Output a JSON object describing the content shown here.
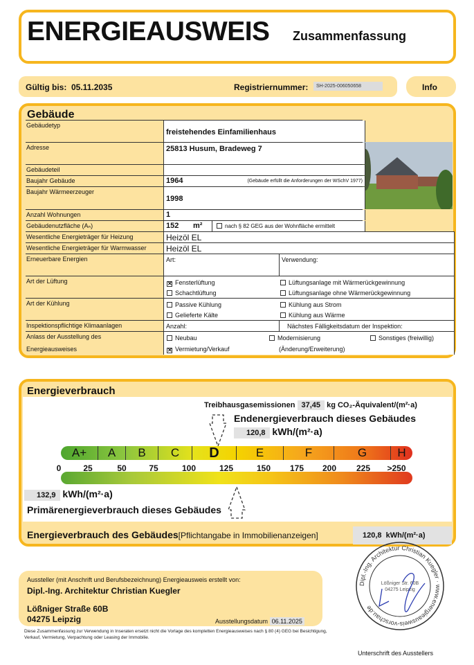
{
  "header": {
    "title": "ENERGIEAUSWEIS",
    "subtitle": "Zusammenfassung"
  },
  "info_bar": {
    "valid_label": "Gültig bis:",
    "valid_date": "05.11.2035",
    "reg_label": "Registriernummer:",
    "reg_number": "SH-2025-006050658",
    "info_button": "Info"
  },
  "building": {
    "title": "Gebäude",
    "type_label": "Gebäudetyp",
    "type": "freistehendes Einfamilienhaus",
    "address_label": "Adresse",
    "address": "25813 Husum, Bradeweg 7",
    "part_label": "Gebäudeteil",
    "part": "",
    "year_label": "Baujahr Gebäude",
    "year": "1964",
    "year_note": "(Gebäude erfüllt die Anforderungen der WSchV 1977)",
    "heater_year_label": "Baujahr Wärmeerzeuger",
    "heater_year": "1998",
    "units_label": "Anzahl Wohnungen",
    "units": "1",
    "area_label": "Gebäudenutzfläche (Aₙ)",
    "area": "152",
    "area_unit": "m²",
    "area_note": "nach § 82 GEG aus der Wohnfläche ermittelt",
    "area_note_checked": false,
    "heating_label": "Wesentliche Energieträger für Heizung",
    "heating": "Heizöl EL",
    "water_label": "Wesentliche Energieträger für Warmwasser",
    "water": "Heizöl EL",
    "renew_label": "Erneuerbare Energien",
    "renew_type": "Art:",
    "renew_use": "Verwendung:",
    "vent_label": "Art der Lüftung",
    "vent_options": [
      {
        "label": "Fensterlüftung",
        "checked": true
      },
      {
        "label": "Lüftungsanlage mit Wärmerückgewinnung",
        "checked": false
      },
      {
        "label": "Schachtlüftung",
        "checked": false
      },
      {
        "label": "Lüftungsanlage ohne Wärmerückgewinnung",
        "checked": false
      }
    ],
    "cool_label": "Art der Kühlung",
    "cool_options": [
      {
        "label": "Passive Kühlung",
        "checked": false
      },
      {
        "label": "Kühlung aus Strom",
        "checked": false
      },
      {
        "label": "Gelieferte Kälte",
        "checked": false
      },
      {
        "label": "Kühlung aus Wärme",
        "checked": false
      }
    ],
    "ac_label": "Inspektionspflichtige Klimaanlagen",
    "ac_count": "Anzahl:",
    "ac_next": "Nächstes Fälligkeitsdatum der Inspektion:",
    "reason_label_1": "Anlass der Ausstellung des",
    "reason_label_2": "Energieausweises",
    "reason_options": [
      {
        "label": "Neubau",
        "checked": false
      },
      {
        "label": "Modernisierung",
        "checked": false
      },
      {
        "label": "Sonstiges (freiwillig)",
        "checked": false
      },
      {
        "label": "Vermietung/Verkauf",
        "checked": true
      }
    ],
    "reason_mod_note": "(Änderung/Erweiterung)"
  },
  "energy": {
    "title": "Energieverbrauch",
    "ghg_label": "Treibhausgasemissionen",
    "ghg_value": "37,45",
    "ghg_unit": "kg CO₂-Äquivalent/(m²·a)",
    "final_label": "Endenergieverbrauch dieses Gebäudes",
    "final_value": "120,8",
    "unit": "kWh/(m²·a)",
    "primary_value": "132,9",
    "primary_label": "Primärenergieverbrauch dieses Gebäudes",
    "classes": [
      "A+",
      "A",
      "B",
      "C",
      "D",
      "E",
      "F",
      "G",
      "H"
    ],
    "current_class": "D",
    "ticks": [
      "0",
      "25",
      "50",
      "75",
      "100",
      "125",
      "150",
      "175",
      "200",
      "225",
      ">250"
    ],
    "summary_label": "Energieverbrauch des Gebäudes",
    "summary_note": "[Pflichtangabe in Immobilienanzeigen]",
    "summary_value": "120,8",
    "summary_unit": "kWh/(m²·a)"
  },
  "issuer": {
    "intro": "Aussteller (mit Anschrift und Berufsbezeichnung) Energieausweis erstellt von:",
    "name": "Dipl.-Ing. Architektur Christian Kuegler",
    "street": "Lößniger Straße 60B",
    "city": "04275 Leipzig",
    "date_label": "Ausstellungsdatum",
    "date": "06.11.2025",
    "disclaimer": "Diese Zusammenfassung zur Verwendung in Inseraten ersetzt nicht die Vorlage des kompletten Energieausweises nach § 80 (4) GEG bei Besichtigung, Verkauf, Vermietung, Verpachtung oder Leasing der Immobilie.",
    "signature_label": "Unterschrift des Ausstellers",
    "stamp": {
      "ring_text": "Dipl.-Ing. Architektur Christian Kuegler · www.energieausweis-vorschau.de",
      "center_1": "Lößniger Str. 60B",
      "center_2": "04275 Leipzig"
    }
  },
  "colors": {
    "accent": "#f6b61e",
    "fill": "#fde3a0"
  }
}
